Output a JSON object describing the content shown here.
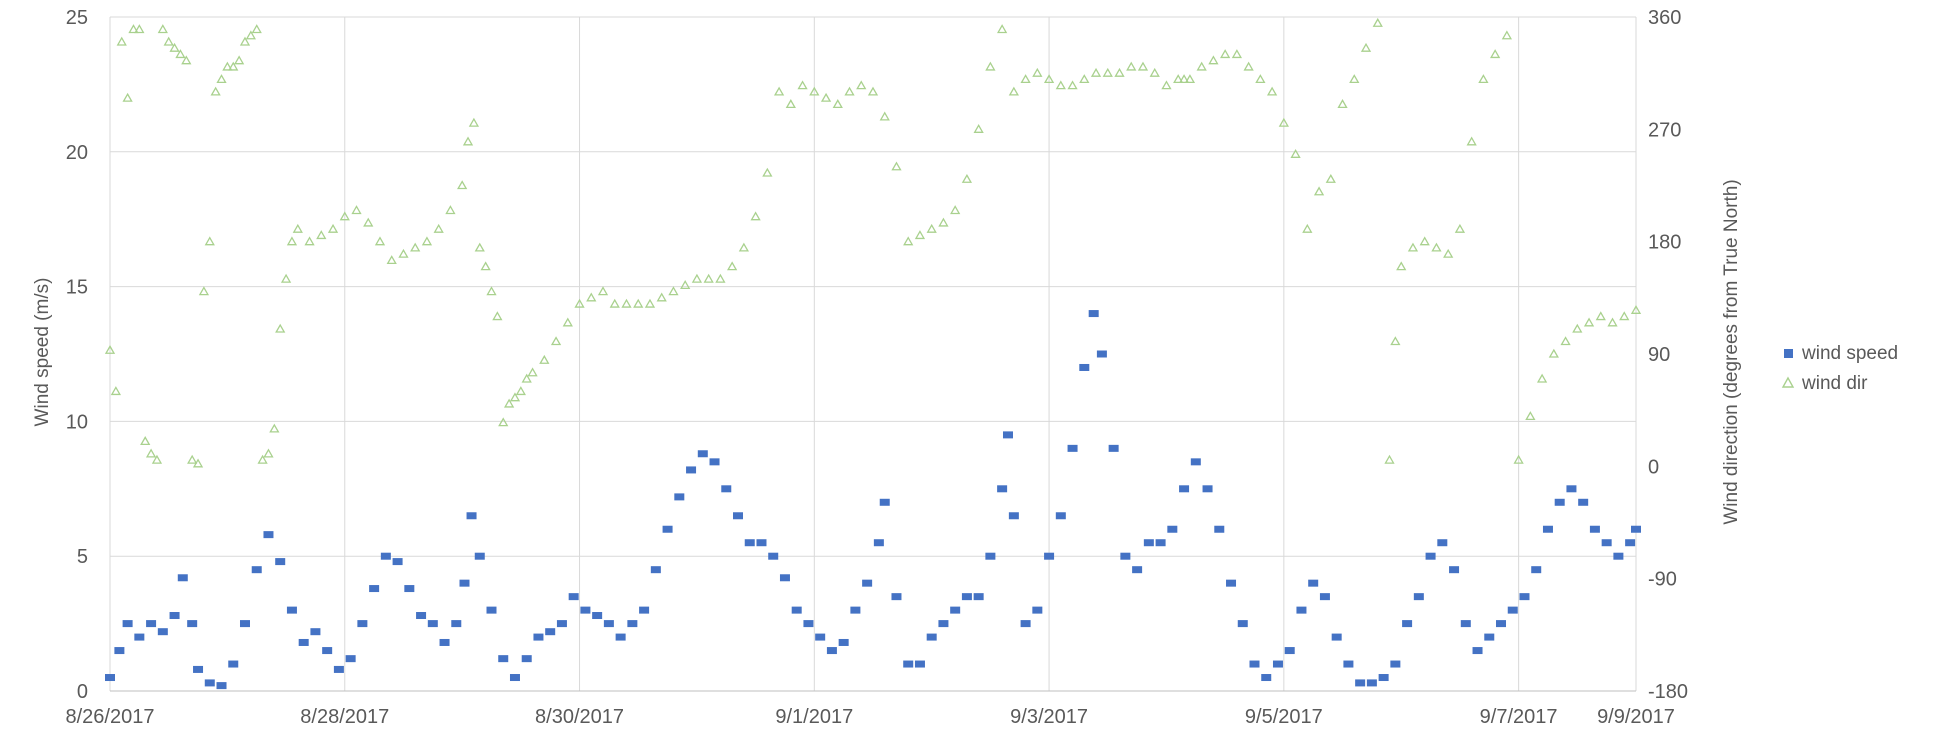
{
  "chart_data": {
    "type": "scatter",
    "ylabel_left": "Wind speed (m/s)",
    "ylabel_right": "Wind direction (degrees from True North)",
    "xlim": [
      "8/26/2017",
      "9/9/2017"
    ],
    "ylim_left": [
      0,
      25
    ],
    "ylim_right": [
      -180,
      360
    ],
    "x_ticks": [
      "8/26/2017",
      "8/28/2017",
      "8/30/2017",
      "9/1/2017",
      "9/3/2017",
      "9/5/2017",
      "9/7/2017",
      "9/9/2017"
    ],
    "y_ticks_left": [
      "0",
      "5",
      "10",
      "15",
      "20",
      "25"
    ],
    "y_ticks_right": [
      "-180",
      "-90",
      "0",
      "90",
      "180",
      "270",
      "360"
    ],
    "grid": true,
    "legend_position": "right",
    "series": [
      {
        "name": "wind speed",
        "axis": "left",
        "marker": "square",
        "color": "#4472C4",
        "points": [
          [
            0.0,
            0.5
          ],
          [
            0.08,
            1.5
          ],
          [
            0.15,
            2.5
          ],
          [
            0.25,
            2.0
          ],
          [
            0.35,
            2.5
          ],
          [
            0.45,
            2.2
          ],
          [
            0.55,
            2.8
          ],
          [
            0.62,
            4.2
          ],
          [
            0.7,
            2.5
          ],
          [
            0.75,
            0.8
          ],
          [
            0.85,
            0.3
          ],
          [
            0.95,
            0.2
          ],
          [
            1.05,
            1.0
          ],
          [
            1.15,
            2.5
          ],
          [
            1.25,
            4.5
          ],
          [
            1.35,
            5.8
          ],
          [
            1.45,
            4.8
          ],
          [
            1.55,
            3.0
          ],
          [
            1.65,
            1.8
          ],
          [
            1.75,
            2.2
          ],
          [
            1.85,
            1.5
          ],
          [
            1.95,
            0.8
          ],
          [
            2.05,
            1.2
          ],
          [
            2.15,
            2.5
          ],
          [
            2.25,
            3.8
          ],
          [
            2.35,
            5.0
          ],
          [
            2.45,
            4.8
          ],
          [
            2.55,
            3.8
          ],
          [
            2.65,
            2.8
          ],
          [
            2.75,
            2.5
          ],
          [
            2.85,
            1.8
          ],
          [
            2.95,
            2.5
          ],
          [
            3.02,
            4.0
          ],
          [
            3.08,
            6.5
          ],
          [
            3.15,
            5.0
          ],
          [
            3.25,
            3.0
          ],
          [
            3.35,
            1.2
          ],
          [
            3.45,
            0.5
          ],
          [
            3.55,
            1.2
          ],
          [
            3.65,
            2.0
          ],
          [
            3.75,
            2.2
          ],
          [
            3.85,
            2.5
          ],
          [
            3.95,
            3.5
          ],
          [
            4.05,
            3.0
          ],
          [
            4.15,
            2.8
          ],
          [
            4.25,
            2.5
          ],
          [
            4.35,
            2.0
          ],
          [
            4.45,
            2.5
          ],
          [
            4.55,
            3.0
          ],
          [
            4.65,
            4.5
          ],
          [
            4.75,
            6.0
          ],
          [
            4.85,
            7.2
          ],
          [
            4.95,
            8.2
          ],
          [
            5.05,
            8.8
          ],
          [
            5.15,
            8.5
          ],
          [
            5.25,
            7.5
          ],
          [
            5.35,
            6.5
          ],
          [
            5.45,
            5.5
          ],
          [
            5.55,
            5.5
          ],
          [
            5.65,
            5.0
          ],
          [
            5.75,
            4.2
          ],
          [
            5.85,
            3.0
          ],
          [
            5.95,
            2.5
          ],
          [
            6.05,
            2.0
          ],
          [
            6.15,
            1.5
          ],
          [
            6.25,
            1.8
          ],
          [
            6.35,
            3.0
          ],
          [
            6.45,
            4.0
          ],
          [
            6.55,
            5.5
          ],
          [
            6.6,
            7.0
          ],
          [
            6.7,
            3.5
          ],
          [
            6.8,
            1.0
          ],
          [
            6.9,
            1.0
          ],
          [
            7.0,
            2.0
          ],
          [
            7.1,
            2.5
          ],
          [
            7.2,
            3.0
          ],
          [
            7.3,
            3.5
          ],
          [
            7.4,
            3.5
          ],
          [
            7.5,
            5.0
          ],
          [
            7.6,
            7.5
          ],
          [
            7.65,
            9.5
          ],
          [
            7.7,
            6.5
          ],
          [
            7.8,
            2.5
          ],
          [
            7.9,
            3.0
          ],
          [
            8.0,
            5.0
          ],
          [
            8.1,
            6.5
          ],
          [
            8.2,
            9.0
          ],
          [
            8.3,
            12.0
          ],
          [
            8.38,
            14.0
          ],
          [
            8.45,
            12.5
          ],
          [
            8.55,
            9.0
          ],
          [
            8.65,
            5.0
          ],
          [
            8.75,
            4.5
          ],
          [
            8.85,
            5.5
          ],
          [
            8.95,
            5.5
          ],
          [
            9.05,
            6.0
          ],
          [
            9.15,
            7.5
          ],
          [
            9.25,
            8.5
          ],
          [
            9.35,
            7.5
          ],
          [
            9.45,
            6.0
          ],
          [
            9.55,
            4.0
          ],
          [
            9.65,
            2.5
          ],
          [
            9.75,
            1.0
          ],
          [
            9.85,
            0.5
          ],
          [
            9.95,
            1.0
          ],
          [
            10.05,
            1.5
          ],
          [
            10.15,
            3.0
          ],
          [
            10.25,
            4.0
          ],
          [
            10.35,
            3.5
          ],
          [
            10.45,
            2.0
          ],
          [
            10.55,
            1.0
          ],
          [
            10.65,
            0.3
          ],
          [
            10.75,
            0.3
          ],
          [
            10.85,
            0.5
          ],
          [
            10.95,
            1.0
          ],
          [
            11.05,
            2.5
          ],
          [
            11.15,
            3.5
          ],
          [
            11.25,
            5.0
          ],
          [
            11.35,
            5.5
          ],
          [
            11.45,
            4.5
          ],
          [
            11.55,
            2.5
          ],
          [
            11.65,
            1.5
          ],
          [
            11.75,
            2.0
          ],
          [
            11.85,
            2.5
          ],
          [
            11.95,
            3.0
          ],
          [
            12.05,
            3.5
          ],
          [
            12.15,
            4.5
          ],
          [
            12.25,
            6.0
          ],
          [
            12.35,
            7.0
          ],
          [
            12.45,
            7.5
          ],
          [
            12.55,
            7.0
          ],
          [
            12.65,
            6.0
          ],
          [
            12.75,
            5.5
          ],
          [
            12.85,
            5.0
          ],
          [
            12.95,
            5.5
          ],
          [
            13.0,
            6.0
          ]
        ]
      },
      {
        "name": "wind dir",
        "axis": "right",
        "marker": "triangle",
        "color": "#A9D18E",
        "points": [
          [
            0.0,
            93
          ],
          [
            0.05,
            60
          ],
          [
            0.1,
            340
          ],
          [
            0.15,
            295
          ],
          [
            0.2,
            350
          ],
          [
            0.25,
            350
          ],
          [
            0.3,
            20
          ],
          [
            0.35,
            10
          ],
          [
            0.4,
            5
          ],
          [
            0.45,
            350
          ],
          [
            0.5,
            340
          ],
          [
            0.55,
            335
          ],
          [
            0.6,
            330
          ],
          [
            0.65,
            325
          ],
          [
            0.7,
            5
          ],
          [
            0.75,
            2
          ],
          [
            0.8,
            140
          ],
          [
            0.85,
            180
          ],
          [
            0.9,
            300
          ],
          [
            0.95,
            310
          ],
          [
            1.0,
            320
          ],
          [
            1.05,
            320
          ],
          [
            1.1,
            325
          ],
          [
            1.15,
            340
          ],
          [
            1.2,
            345
          ],
          [
            1.25,
            350
          ],
          [
            1.3,
            5
          ],
          [
            1.35,
            10
          ],
          [
            1.4,
            30
          ],
          [
            1.45,
            110
          ],
          [
            1.5,
            150
          ],
          [
            1.55,
            180
          ],
          [
            1.6,
            190
          ],
          [
            1.7,
            180
          ],
          [
            1.8,
            185
          ],
          [
            1.9,
            190
          ],
          [
            2.0,
            200
          ],
          [
            2.1,
            205
          ],
          [
            2.2,
            195
          ],
          [
            2.3,
            180
          ],
          [
            2.4,
            165
          ],
          [
            2.5,
            170
          ],
          [
            2.6,
            175
          ],
          [
            2.7,
            180
          ],
          [
            2.8,
            190
          ],
          [
            2.9,
            205
          ],
          [
            3.0,
            225
          ],
          [
            3.05,
            260
          ],
          [
            3.1,
            275
          ],
          [
            3.15,
            175
          ],
          [
            3.2,
            160
          ],
          [
            3.25,
            140
          ],
          [
            3.3,
            120
          ],
          [
            3.35,
            35
          ],
          [
            3.4,
            50
          ],
          [
            3.45,
            55
          ],
          [
            3.5,
            60
          ],
          [
            3.55,
            70
          ],
          [
            3.6,
            75
          ],
          [
            3.7,
            85
          ],
          [
            3.8,
            100
          ],
          [
            3.9,
            115
          ],
          [
            4.0,
            130
          ],
          [
            4.1,
            135
          ],
          [
            4.2,
            140
          ],
          [
            4.3,
            130
          ],
          [
            4.4,
            130
          ],
          [
            4.5,
            130
          ],
          [
            4.6,
            130
          ],
          [
            4.7,
            135
          ],
          [
            4.8,
            140
          ],
          [
            4.9,
            145
          ],
          [
            5.0,
            150
          ],
          [
            5.1,
            150
          ],
          [
            5.2,
            150
          ],
          [
            5.3,
            160
          ],
          [
            5.4,
            175
          ],
          [
            5.5,
            200
          ],
          [
            5.6,
            235
          ],
          [
            5.7,
            300
          ],
          [
            5.8,
            290
          ],
          [
            5.9,
            305
          ],
          [
            6.0,
            300
          ],
          [
            6.1,
            295
          ],
          [
            6.2,
            290
          ],
          [
            6.3,
            300
          ],
          [
            6.4,
            305
          ],
          [
            6.5,
            300
          ],
          [
            6.6,
            280
          ],
          [
            6.7,
            240
          ],
          [
            6.8,
            180
          ],
          [
            6.9,
            185
          ],
          [
            7.0,
            190
          ],
          [
            7.1,
            195
          ],
          [
            7.2,
            205
          ],
          [
            7.3,
            230
          ],
          [
            7.4,
            270
          ],
          [
            7.5,
            320
          ],
          [
            7.6,
            350
          ],
          [
            7.7,
            300
          ],
          [
            7.8,
            310
          ],
          [
            7.9,
            315
          ],
          [
            8.0,
            310
          ],
          [
            8.1,
            305
          ],
          [
            8.2,
            305
          ],
          [
            8.3,
            310
          ],
          [
            8.4,
            315
          ],
          [
            8.5,
            315
          ],
          [
            8.6,
            315
          ],
          [
            8.7,
            320
          ],
          [
            8.8,
            320
          ],
          [
            8.9,
            315
          ],
          [
            9.0,
            305
          ],
          [
            9.1,
            310
          ],
          [
            9.15,
            310
          ],
          [
            9.2,
            310
          ],
          [
            9.3,
            320
          ],
          [
            9.4,
            325
          ],
          [
            9.5,
            330
          ],
          [
            9.6,
            330
          ],
          [
            9.7,
            320
          ],
          [
            9.8,
            310
          ],
          [
            9.9,
            300
          ],
          [
            10.0,
            275
          ],
          [
            10.1,
            250
          ],
          [
            10.2,
            190
          ],
          [
            10.3,
            220
          ],
          [
            10.4,
            230
          ],
          [
            10.5,
            290
          ],
          [
            10.6,
            310
          ],
          [
            10.7,
            335
          ],
          [
            10.8,
            355
          ],
          [
            10.9,
            5
          ],
          [
            10.95,
            100
          ],
          [
            11.0,
            160
          ],
          [
            11.1,
            175
          ],
          [
            11.2,
            180
          ],
          [
            11.3,
            175
          ],
          [
            11.4,
            170
          ],
          [
            11.5,
            190
          ],
          [
            11.6,
            260
          ],
          [
            11.7,
            310
          ],
          [
            11.8,
            330
          ],
          [
            11.9,
            345
          ],
          [
            12.0,
            5
          ],
          [
            12.1,
            40
          ],
          [
            12.2,
            70
          ],
          [
            12.3,
            90
          ],
          [
            12.4,
            100
          ],
          [
            12.5,
            110
          ],
          [
            12.6,
            115
          ],
          [
            12.7,
            120
          ],
          [
            12.8,
            115
          ],
          [
            12.9,
            120
          ],
          [
            13.0,
            125
          ]
        ]
      }
    ]
  }
}
